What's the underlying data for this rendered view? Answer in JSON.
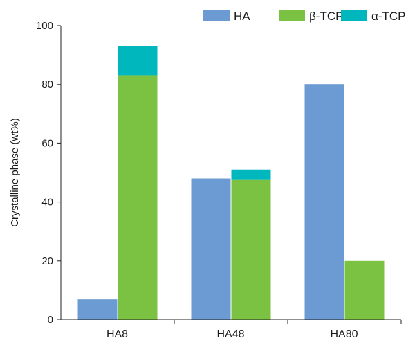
{
  "chart_data": {
    "type": "bar",
    "stacked_series": [
      "β-TCP",
      "α-TCP"
    ],
    "title": "",
    "xlabel": "",
    "ylabel": "Crystalline phase (wt%)",
    "ylim": [
      0,
      100
    ],
    "yticks": [
      0,
      20,
      40,
      60,
      80,
      100
    ],
    "categories": [
      "HA8",
      "HA48",
      "HA80"
    ],
    "series": [
      {
        "name": "HA",
        "color": "#6b9bd2",
        "values": [
          7,
          48,
          80
        ]
      },
      {
        "name": "β-TCP",
        "color": "#7cc242",
        "values": [
          83,
          47.5,
          20
        ]
      },
      {
        "name": "α-TCP",
        "color": "#00b7bd",
        "values": [
          10,
          3.5,
          0
        ]
      }
    ],
    "legend_position": "top-right",
    "grid": false
  }
}
